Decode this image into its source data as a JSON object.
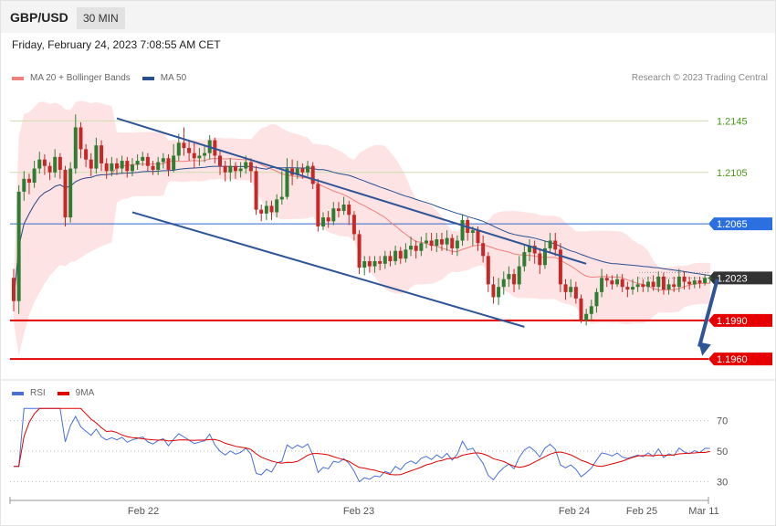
{
  "header": {
    "symbol": "GBP/USD",
    "timeframe": "30 MIN"
  },
  "datetime": "Friday, February 24, 2023 7:08:55 AM CET",
  "legend": [
    {
      "label": "MA 20 + Bollinger Bands",
      "color": "#f08080"
    },
    {
      "label": "MA 50",
      "color": "#2a4f8f"
    }
  ],
  "copyright": "Research © 2023 Trading Central",
  "colors": {
    "bull": "#2e7d32",
    "bear": "#c62828",
    "resistance": "#3366cc",
    "support": "#e00000",
    "channel": "#2f5597",
    "band": "#fde0e0",
    "ma20": "#f08080",
    "ma50": "#2a4f8f"
  },
  "chart_data": [
    {
      "type": "candlestick",
      "ylim": [
        1.1948,
        1.2168
      ],
      "x_tick_labels": [
        "Feb 22",
        "Feb 23",
        "Feb 24",
        "Feb 25",
        "Mar 11"
      ],
      "levels": [
        {
          "value": 1.2145,
          "label": "1.2145",
          "kind": "target"
        },
        {
          "value": 1.2105,
          "label": "1.2105",
          "kind": "target"
        },
        {
          "value": 1.2065,
          "label": "1.2065",
          "kind": "resistance"
        },
        {
          "value": 1.2023,
          "label": "1.2023",
          "kind": "last"
        },
        {
          "value": 1.199,
          "label": "1.1990",
          "kind": "support"
        },
        {
          "value": 1.196,
          "label": "1.1960",
          "kind": "support"
        }
      ],
      "channel": {
        "upper": [
          {
            "t": 20,
            "v": 1.2147
          },
          {
            "t": 111,
            "v": 1.2034
          }
        ],
        "lower": [
          {
            "t": 23,
            "v": 1.2074
          },
          {
            "t": 99,
            "v": 1.1985
          }
        ]
      },
      "forecast_arrow": {
        "from": 1.2022,
        "to": 1.1961
      },
      "candles": [
        [
          1.2023,
          1.2005,
          1.203,
          1.1997
        ],
        [
          1.2005,
          1.209,
          1.2095,
          1.1995
        ],
        [
          1.209,
          1.21,
          1.2106,
          1.2083
        ],
        [
          1.21,
          1.2097,
          1.2104,
          1.2088
        ],
        [
          1.2097,
          1.2108,
          1.2114,
          1.2093
        ],
        [
          1.2108,
          1.2115,
          1.2121,
          1.2104
        ],
        [
          1.2115,
          1.211,
          1.2119,
          1.2103
        ],
        [
          1.211,
          1.2105,
          1.2113,
          1.2099
        ],
        [
          1.2105,
          1.2117,
          1.2123,
          1.2101
        ],
        [
          1.2117,
          1.2107,
          1.212,
          1.21
        ],
        [
          1.2107,
          1.207,
          1.211,
          1.2063
        ],
        [
          1.207,
          1.2108,
          1.2113,
          1.2066
        ],
        [
          1.2108,
          1.214,
          1.215,
          1.2104
        ],
        [
          1.214,
          1.2123,
          1.2144,
          1.2116
        ],
        [
          1.2123,
          1.2115,
          1.2127,
          1.2109
        ],
        [
          1.2115,
          1.2108,
          1.212,
          1.2102
        ],
        [
          1.2108,
          1.2126,
          1.2132,
          1.2104
        ],
        [
          1.2126,
          1.2112,
          1.213,
          1.2106
        ],
        [
          1.2112,
          1.2106,
          1.2116,
          1.21
        ],
        [
          1.2106,
          1.2112,
          1.2117,
          1.2102
        ],
        [
          1.2112,
          1.2108,
          1.2116,
          1.2103
        ],
        [
          1.2108,
          1.2114,
          1.2118,
          1.2104
        ],
        [
          1.2114,
          1.2106,
          1.2117,
          1.2101
        ],
        [
          1.2106,
          1.2111,
          1.2116,
          1.2102
        ],
        [
          1.2111,
          1.2114,
          1.2119,
          1.2107
        ],
        [
          1.2114,
          1.2117,
          1.2121,
          1.211
        ],
        [
          1.2117,
          1.211,
          1.212,
          1.2106
        ],
        [
          1.211,
          1.2107,
          1.2114,
          1.2103
        ],
        [
          1.2107,
          1.2113,
          1.2117,
          1.2103
        ],
        [
          1.2113,
          1.2116,
          1.212,
          1.2108
        ],
        [
          1.2116,
          1.2107,
          1.2119,
          1.2102
        ],
        [
          1.2107,
          1.2118,
          1.2127,
          1.2105
        ],
        [
          1.2118,
          1.2128,
          1.2135,
          1.2114
        ],
        [
          1.2128,
          1.2124,
          1.214,
          1.2118
        ],
        [
          1.2124,
          1.212,
          1.213,
          1.2114
        ],
        [
          1.212,
          1.2116,
          1.2128,
          1.2108
        ],
        [
          1.2116,
          1.2118,
          1.2124,
          1.211
        ],
        [
          1.2118,
          1.212,
          1.2126,
          1.2113
        ],
        [
          1.212,
          1.213,
          1.2134,
          1.2115
        ],
        [
          1.213,
          1.2118,
          1.2132,
          1.2112
        ],
        [
          1.2118,
          1.211,
          1.2122,
          1.2103
        ],
        [
          1.211,
          1.2105,
          1.2114,
          1.2098
        ],
        [
          1.2105,
          1.211,
          1.2116,
          1.2098
        ],
        [
          1.211,
          1.2106,
          1.2113,
          1.21
        ],
        [
          1.2106,
          1.2108,
          1.2113,
          1.2101
        ],
        [
          1.2108,
          1.2113,
          1.2118,
          1.2104
        ],
        [
          1.2113,
          1.2106,
          1.2116,
          1.2097
        ],
        [
          1.2106,
          1.2076,
          1.211,
          1.2072
        ],
        [
          1.2076,
          1.2073,
          1.208,
          1.2067
        ],
        [
          1.2073,
          1.2079,
          1.2083,
          1.2068
        ],
        [
          1.2079,
          1.2074,
          1.2083,
          1.2068
        ],
        [
          1.2074,
          1.2084,
          1.2088,
          1.207
        ],
        [
          1.2084,
          1.2086,
          1.2106,
          1.208
        ],
        [
          1.2086,
          1.2108,
          1.2116,
          1.2084
        ],
        [
          1.2108,
          1.2103,
          1.2115,
          1.2095
        ],
        [
          1.2103,
          1.2108,
          1.2114,
          1.21
        ],
        [
          1.2108,
          1.2105,
          1.2112,
          1.21
        ],
        [
          1.2105,
          1.211,
          1.2114,
          1.2102
        ],
        [
          1.211,
          1.2096,
          1.2113,
          1.2092
        ],
        [
          1.2096,
          1.2063,
          1.21,
          1.2059
        ],
        [
          1.2063,
          1.207,
          1.2074,
          1.206
        ],
        [
          1.207,
          1.2067,
          1.2075,
          1.2062
        ],
        [
          1.2067,
          1.2077,
          1.2082,
          1.2064
        ],
        [
          1.2077,
          1.2075,
          1.2082,
          1.207
        ],
        [
          1.2075,
          1.208,
          1.2086,
          1.2072
        ],
        [
          1.208,
          1.2072,
          1.2083,
          1.2064
        ],
        [
          1.2072,
          1.2057,
          1.2075,
          1.2052
        ],
        [
          1.2057,
          1.2031,
          1.206,
          1.2026
        ],
        [
          1.2031,
          1.2036,
          1.204,
          1.2025
        ],
        [
          1.2036,
          1.2032,
          1.204,
          1.2027
        ],
        [
          1.2032,
          1.2036,
          1.204,
          1.2027
        ],
        [
          1.2036,
          1.2034,
          1.204,
          1.2029
        ],
        [
          1.2034,
          1.204,
          1.2044,
          1.203
        ],
        [
          1.204,
          1.2036,
          1.2044,
          1.2032
        ],
        [
          1.2036,
          1.2044,
          1.2048,
          1.2033
        ],
        [
          1.2044,
          1.2038,
          1.2047,
          1.2034
        ],
        [
          1.2038,
          1.2045,
          1.205,
          1.2035
        ],
        [
          1.2045,
          1.2048,
          1.2055,
          1.204
        ],
        [
          1.2048,
          1.2044,
          1.2052,
          1.2038
        ],
        [
          1.2044,
          1.205,
          1.2055,
          1.204
        ],
        [
          1.205,
          1.2052,
          1.2058,
          1.2046
        ],
        [
          1.2052,
          1.2048,
          1.2058,
          1.2044
        ],
        [
          1.2048,
          1.2053,
          1.2058,
          1.2043
        ],
        [
          1.2053,
          1.2049,
          1.2058,
          1.2044
        ],
        [
          1.2049,
          1.2054,
          1.206,
          1.2044
        ],
        [
          1.2054,
          1.2046,
          1.2057,
          1.2041
        ],
        [
          1.2046,
          1.2052,
          1.2056,
          1.204
        ],
        [
          1.2052,
          1.2068,
          1.2072,
          1.2048
        ],
        [
          1.2068,
          1.2058,
          1.207,
          1.2052
        ],
        [
          1.2058,
          1.206,
          1.2063,
          1.2048
        ],
        [
          1.206,
          1.205,
          1.2063,
          1.2044
        ],
        [
          1.205,
          1.204,
          1.2056,
          1.2035
        ],
        [
          1.204,
          1.2018,
          1.2043,
          1.2012
        ],
        [
          1.2018,
          1.2008,
          1.2024,
          1.2003
        ],
        [
          1.2008,
          1.2016,
          1.2023,
          1.2002
        ],
        [
          1.2016,
          1.2022,
          1.2028,
          1.201
        ],
        [
          1.2022,
          1.2026,
          1.2032,
          1.2016
        ],
        [
          1.2026,
          1.2018,
          1.203,
          1.2012
        ],
        [
          1.2018,
          1.2032,
          1.204,
          1.2014
        ],
        [
          1.2032,
          1.2043,
          1.2048,
          1.2028
        ],
        [
          1.2043,
          1.2048,
          1.2053,
          1.2036
        ],
        [
          1.2048,
          1.2042,
          1.2052,
          1.2034
        ],
        [
          1.2042,
          1.2033,
          1.2046,
          1.2026
        ],
        [
          1.2033,
          1.2046,
          1.2052,
          1.203
        ],
        [
          1.2046,
          1.2052,
          1.2058,
          1.2042
        ],
        [
          1.2052,
          1.2045,
          1.2058,
          1.204
        ],
        [
          1.2045,
          1.2018,
          1.205,
          1.2012
        ],
        [
          1.2018,
          1.2012,
          1.2022,
          1.2006
        ],
        [
          1.2012,
          1.2016,
          1.2022,
          1.2008
        ],
        [
          1.2016,
          1.2007,
          1.202,
          1.2003
        ],
        [
          1.2007,
          1.199,
          1.201,
          1.1988
        ],
        [
          1.199,
          1.1995,
          1.1999,
          1.1986
        ],
        [
          1.1995,
          1.2001,
          1.2006,
          1.199
        ],
        [
          1.2001,
          1.2012,
          1.2015,
          1.1996
        ],
        [
          1.2012,
          1.2023,
          1.203,
          1.2008
        ],
        [
          1.2023,
          1.2021,
          1.2026,
          1.2016
        ],
        [
          1.2021,
          1.2018,
          1.2025,
          1.2014
        ],
        [
          1.2018,
          1.2022,
          1.2026,
          1.2016
        ],
        [
          1.2022,
          1.2016,
          1.2026,
          1.2012
        ],
        [
          1.2016,
          1.2014,
          1.202,
          1.2008
        ],
        [
          1.2014,
          1.2016,
          1.2022,
          1.201
        ],
        [
          1.2016,
          1.2018,
          1.2024,
          1.2012
        ],
        [
          1.2018,
          1.2016,
          1.2022,
          1.2012
        ],
        [
          1.2016,
          1.202,
          1.2024,
          1.2012
        ],
        [
          1.202,
          1.2016,
          1.2025,
          1.2013
        ],
        [
          1.2016,
          1.2024,
          1.2028,
          1.2012
        ],
        [
          1.2024,
          1.2014,
          1.2027,
          1.201
        ],
        [
          1.2014,
          1.2018,
          1.2022,
          1.201
        ],
        [
          1.2018,
          1.2016,
          1.2024,
          1.2012
        ],
        [
          1.2016,
          1.2024,
          1.203,
          1.2012
        ],
        [
          1.2024,
          1.202,
          1.2028,
          1.2014
        ],
        [
          1.202,
          1.2018,
          1.2024,
          1.2014
        ],
        [
          1.2018,
          1.2021,
          1.2024,
          1.2015
        ],
        [
          1.2021,
          1.2019,
          1.2024,
          1.2015
        ],
        [
          1.2019,
          1.2023,
          1.2026,
          1.2017
        ],
        [
          1.2023,
          1.2023,
          1.2025,
          1.2019
        ]
      ]
    },
    {
      "type": "line",
      "name": "RSI",
      "ylim": [
        20,
        80
      ],
      "levels": [
        70,
        50,
        30
      ],
      "level_labels": [
        "70",
        "50",
        "30"
      ],
      "series": [
        {
          "name": "RSI",
          "color": "#4a6fd6"
        },
        {
          "name": "9MA",
          "color": "#e00000"
        }
      ]
    }
  ]
}
